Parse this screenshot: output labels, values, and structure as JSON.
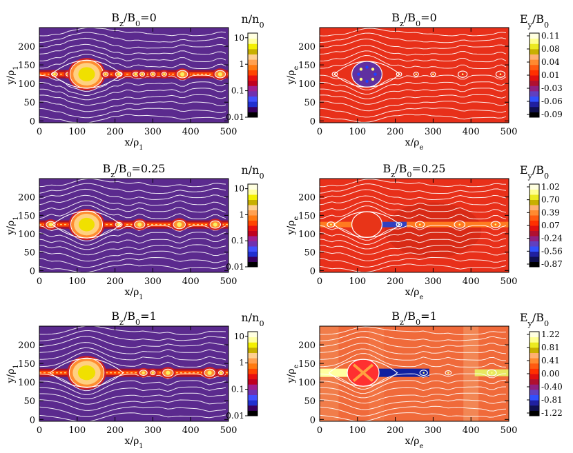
{
  "chart_data": [
    {
      "type": "heatmap",
      "title": "B_z/B_0=0",
      "quantity": "density",
      "colorbar_label": "n/n_0",
      "xlabel": "x/ρ_1",
      "ylabel": "y/ρ_1",
      "xlim": [
        0,
        500
      ],
      "ylim": [
        -5,
        250
      ],
      "xticks": [
        "0",
        "100",
        "200",
        "300",
        "400",
        "500"
      ],
      "yticks": [
        "0",
        "50",
        "100",
        "150",
        "200"
      ],
      "colorbar_scale": "log",
      "colorbar_ticks": [
        "10",
        "1",
        "0.1",
        "0.01"
      ],
      "current_sheet_y": 125,
      "islands": [
        {
          "x": 40,
          "w": 8
        },
        {
          "x": 78,
          "w": 8
        },
        {
          "x": 125,
          "w": 44
        },
        {
          "x": 175,
          "w": 7
        },
        {
          "x": 210,
          "w": 9
        },
        {
          "x": 255,
          "w": 8
        },
        {
          "x": 272,
          "w": 6
        },
        {
          "x": 300,
          "w": 5
        },
        {
          "x": 330,
          "w": 5
        },
        {
          "x": 378,
          "w": 14
        },
        {
          "x": 478,
          "w": 14
        }
      ]
    },
    {
      "type": "heatmap",
      "title": "B_z/B_0=0",
      "quantity": "electric field",
      "colorbar_label": "E_y/B_0",
      "xlabel": "x/ρ_e",
      "ylabel": "y/ρ_e",
      "xlim": [
        0,
        500
      ],
      "ylim": [
        -5,
        250
      ],
      "xticks": [
        "0",
        "100",
        "200",
        "300",
        "400",
        "500"
      ],
      "yticks": [
        "0",
        "50",
        "100",
        "150",
        "200"
      ],
      "colorbar_ticks": [
        "0.11",
        "0.08",
        "0.04",
        "0.01",
        "-0.03",
        "-0.06",
        "-0.09"
      ],
      "current_sheet_y": 125,
      "islands": [
        {
          "x": 40,
          "w": 7
        },
        {
          "x": 125,
          "w": 40
        },
        {
          "x": 210,
          "w": 7
        },
        {
          "x": 255,
          "w": 6
        },
        {
          "x": 300,
          "w": 5
        },
        {
          "x": 378,
          "w": 12
        },
        {
          "x": 478,
          "w": 12
        }
      ]
    },
    {
      "type": "heatmap",
      "title": "B_z/B_0=0.25",
      "quantity": "density",
      "colorbar_label": "n/n_0",
      "xlabel": "x/ρ_1",
      "ylabel": "y/ρ_1",
      "xlim": [
        0,
        500
      ],
      "ylim": [
        -5,
        250
      ],
      "xticks": [
        "0",
        "100",
        "200",
        "300",
        "400",
        "500"
      ],
      "yticks": [
        "0",
        "50",
        "100",
        "150",
        "200"
      ],
      "colorbar_scale": "log",
      "colorbar_ticks": [
        "10",
        "1",
        "0.1",
        "0.01"
      ],
      "current_sheet_y": 125,
      "islands": [
        {
          "x": 30,
          "w": 12
        },
        {
          "x": 125,
          "w": 42
        },
        {
          "x": 210,
          "w": 9
        },
        {
          "x": 265,
          "w": 14
        },
        {
          "x": 370,
          "w": 16
        },
        {
          "x": 465,
          "w": 14
        }
      ]
    },
    {
      "type": "heatmap",
      "title": "B_z/B_0=0.25",
      "quantity": "electric field",
      "colorbar_label": "E_y/B_0",
      "xlabel": "x/ρ_e",
      "ylabel": "y/ρ_e",
      "xlim": [
        0,
        500
      ],
      "ylim": [
        -5,
        250
      ],
      "xticks": [
        "0",
        "100",
        "200",
        "300",
        "400",
        "500"
      ],
      "yticks": [
        "0",
        "50",
        "100",
        "150",
        "200"
      ],
      "colorbar_ticks": [
        "1.02",
        "0.70",
        "0.39",
        "0.07",
        "-0.24",
        "-0.56",
        "-0.87"
      ],
      "current_sheet_y": 125,
      "islands": [
        {
          "x": 30,
          "w": 10
        },
        {
          "x": 125,
          "w": 40
        },
        {
          "x": 210,
          "w": 7
        },
        {
          "x": 265,
          "w": 12
        },
        {
          "x": 370,
          "w": 14
        },
        {
          "x": 465,
          "w": 12
        }
      ]
    },
    {
      "type": "heatmap",
      "title": "B_z/B_0=1",
      "quantity": "density",
      "colorbar_label": "n/n_0",
      "xlabel": "x/ρ_1",
      "ylabel": "y/ρ_1",
      "xlim": [
        0,
        500
      ],
      "ylim": [
        -5,
        250
      ],
      "xticks": [
        "0",
        "100",
        "200",
        "300",
        "400",
        "500"
      ],
      "yticks": [
        "0",
        "50",
        "100",
        "150",
        "200"
      ],
      "colorbar_scale": "log",
      "colorbar_ticks": [
        "10",
        "1",
        "0.1",
        "0.01"
      ],
      "current_sheet_y": 125,
      "islands": [
        {
          "x": 125,
          "w": 46
        },
        {
          "x": 275,
          "w": 10
        },
        {
          "x": 300,
          "w": 6
        },
        {
          "x": 340,
          "w": 14
        },
        {
          "x": 450,
          "w": 14
        },
        {
          "x": 480,
          "w": 6
        }
      ]
    },
    {
      "type": "heatmap",
      "title": "B_z/B_0=1",
      "quantity": "electric field",
      "colorbar_label": "E_y/B_0",
      "xlabel": "x/ρ_e",
      "ylabel": "y/ρ_e",
      "xlim": [
        0,
        500
      ],
      "ylim": [
        -5,
        250
      ],
      "xticks": [
        "0",
        "100",
        "200",
        "300",
        "400",
        "500"
      ],
      "yticks": [
        "0",
        "50",
        "100",
        "150",
        "200"
      ],
      "colorbar_ticks": [
        "1.22",
        "0.81",
        "0.41",
        "0.00",
        "-0.40",
        "-0.81",
        "-1.22"
      ],
      "current_sheet_y": 125,
      "islands": [
        {
          "x": 115,
          "w": 42
        },
        {
          "x": 275,
          "w": 10
        },
        {
          "x": 340,
          "w": 8
        },
        {
          "x": 455,
          "w": 12
        }
      ]
    }
  ],
  "colors": {
    "density_scale": [
      "#000000",
      "#3a0060",
      "#2030d0",
      "#4050ff",
      "#7030b0",
      "#a02090",
      "#c00020",
      "#e81010",
      "#ff4500",
      "#ff7a10",
      "#ffa050",
      "#ffd090",
      "#c8b000",
      "#f4f000",
      "#ffffa0",
      "#ffffe0"
    ],
    "efield_scale": [
      "#000000",
      "#101050",
      "#2020a0",
      "#3050ff",
      "#6040c0",
      "#902080",
      "#b01030",
      "#e01010",
      "#ff3000",
      "#ff5a10",
      "#ff8a30",
      "#ffb070",
      "#c8b000",
      "#ecea20",
      "#ffff90",
      "#ffffe0"
    ],
    "field_lines": "#ffffff"
  }
}
